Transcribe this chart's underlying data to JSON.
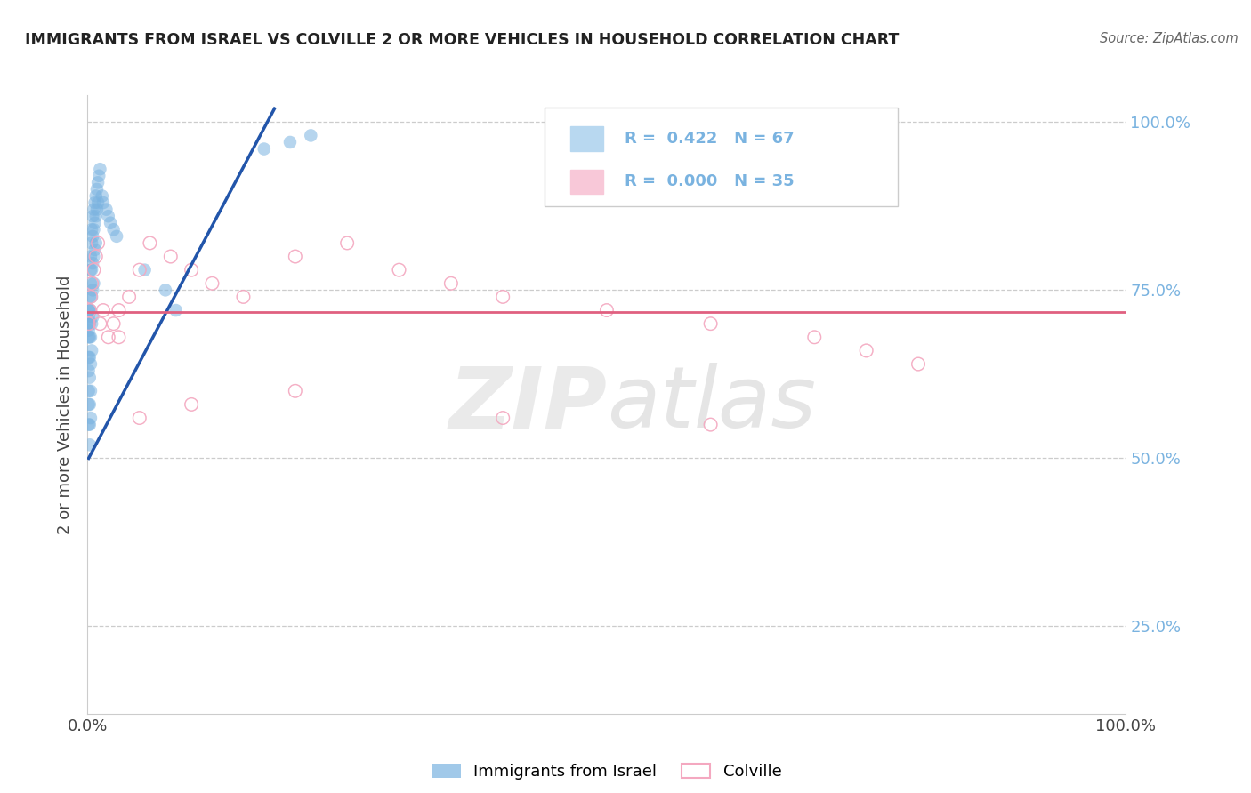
{
  "title": "IMMIGRANTS FROM ISRAEL VS COLVILLE 2 OR MORE VEHICLES IN HOUSEHOLD CORRELATION CHART",
  "source": "Source: ZipAtlas.com",
  "ylabel": "2 or more Vehicles in Household",
  "blue_scatter_x": [
    0.001,
    0.001,
    0.001,
    0.001,
    0.001,
    0.001,
    0.001,
    0.001,
    0.001,
    0.001,
    0.002,
    0.002,
    0.002,
    0.002,
    0.002,
    0.002,
    0.002,
    0.002,
    0.002,
    0.003,
    0.003,
    0.003,
    0.003,
    0.003,
    0.003,
    0.003,
    0.003,
    0.004,
    0.004,
    0.004,
    0.004,
    0.004,
    0.004,
    0.005,
    0.005,
    0.005,
    0.005,
    0.005,
    0.006,
    0.006,
    0.006,
    0.006,
    0.007,
    0.007,
    0.007,
    0.008,
    0.008,
    0.008,
    0.009,
    0.009,
    0.01,
    0.01,
    0.011,
    0.012,
    0.014,
    0.015,
    0.018,
    0.02,
    0.022,
    0.025,
    0.028,
    0.055,
    0.075,
    0.085,
    0.17,
    0.195,
    0.215
  ],
  "blue_scatter_y": [
    0.68,
    0.69,
    0.7,
    0.71,
    0.72,
    0.65,
    0.63,
    0.6,
    0.58,
    0.55,
    0.7,
    0.72,
    0.74,
    0.68,
    0.65,
    0.62,
    0.58,
    0.55,
    0.52,
    0.78,
    0.8,
    0.76,
    0.72,
    0.68,
    0.64,
    0.6,
    0.56,
    0.82,
    0.84,
    0.78,
    0.74,
    0.7,
    0.66,
    0.86,
    0.83,
    0.79,
    0.75,
    0.71,
    0.87,
    0.84,
    0.8,
    0.76,
    0.88,
    0.85,
    0.81,
    0.89,
    0.86,
    0.82,
    0.9,
    0.87,
    0.91,
    0.88,
    0.92,
    0.93,
    0.89,
    0.88,
    0.87,
    0.86,
    0.85,
    0.84,
    0.83,
    0.78,
    0.75,
    0.72,
    0.96,
    0.97,
    0.98
  ],
  "pink_scatter_x": [
    0.001,
    0.002,
    0.003,
    0.004,
    0.006,
    0.008,
    0.01,
    0.012,
    0.015,
    0.02,
    0.025,
    0.03,
    0.04,
    0.05,
    0.06,
    0.08,
    0.1,
    0.12,
    0.15,
    0.2,
    0.25,
    0.3,
    0.35,
    0.4,
    0.5,
    0.6,
    0.7,
    0.75,
    0.8,
    0.03,
    0.05,
    0.1,
    0.2,
    0.4,
    0.6
  ],
  "pink_scatter_y": [
    0.7,
    0.72,
    0.74,
    0.76,
    0.78,
    0.8,
    0.82,
    0.7,
    0.72,
    0.68,
    0.7,
    0.72,
    0.74,
    0.78,
    0.82,
    0.8,
    0.78,
    0.76,
    0.74,
    0.8,
    0.82,
    0.78,
    0.76,
    0.74,
    0.72,
    0.7,
    0.68,
    0.66,
    0.64,
    0.68,
    0.56,
    0.58,
    0.6,
    0.56,
    0.55
  ],
  "blue_line_x": [
    0.001,
    0.18
  ],
  "blue_line_y": [
    0.5,
    1.02
  ],
  "pink_line_y": 0.718,
  "blue_scatter_color": "#7ab3e0",
  "pink_scatter_color": "#f4a8c0",
  "blue_line_color": "#2255aa",
  "pink_line_color": "#e06080",
  "legend_blue_color": "#b8d8f0",
  "legend_pink_color": "#f8c8d8",
  "xlim": [
    0.0,
    1.0
  ],
  "ylim": [
    0.12,
    1.04
  ],
  "yticks": [
    0.25,
    0.5,
    0.75,
    1.0
  ],
  "xticks": [
    0.0,
    1.0
  ],
  "legend_label_blue": "Immigrants from Israel",
  "legend_label_pink": "Colville",
  "title_color": "#222222",
  "source_color": "#666666",
  "legend_r_blue": "R =  0.422   N = 67",
  "legend_r_pink": "R =  0.000   N = 35"
}
